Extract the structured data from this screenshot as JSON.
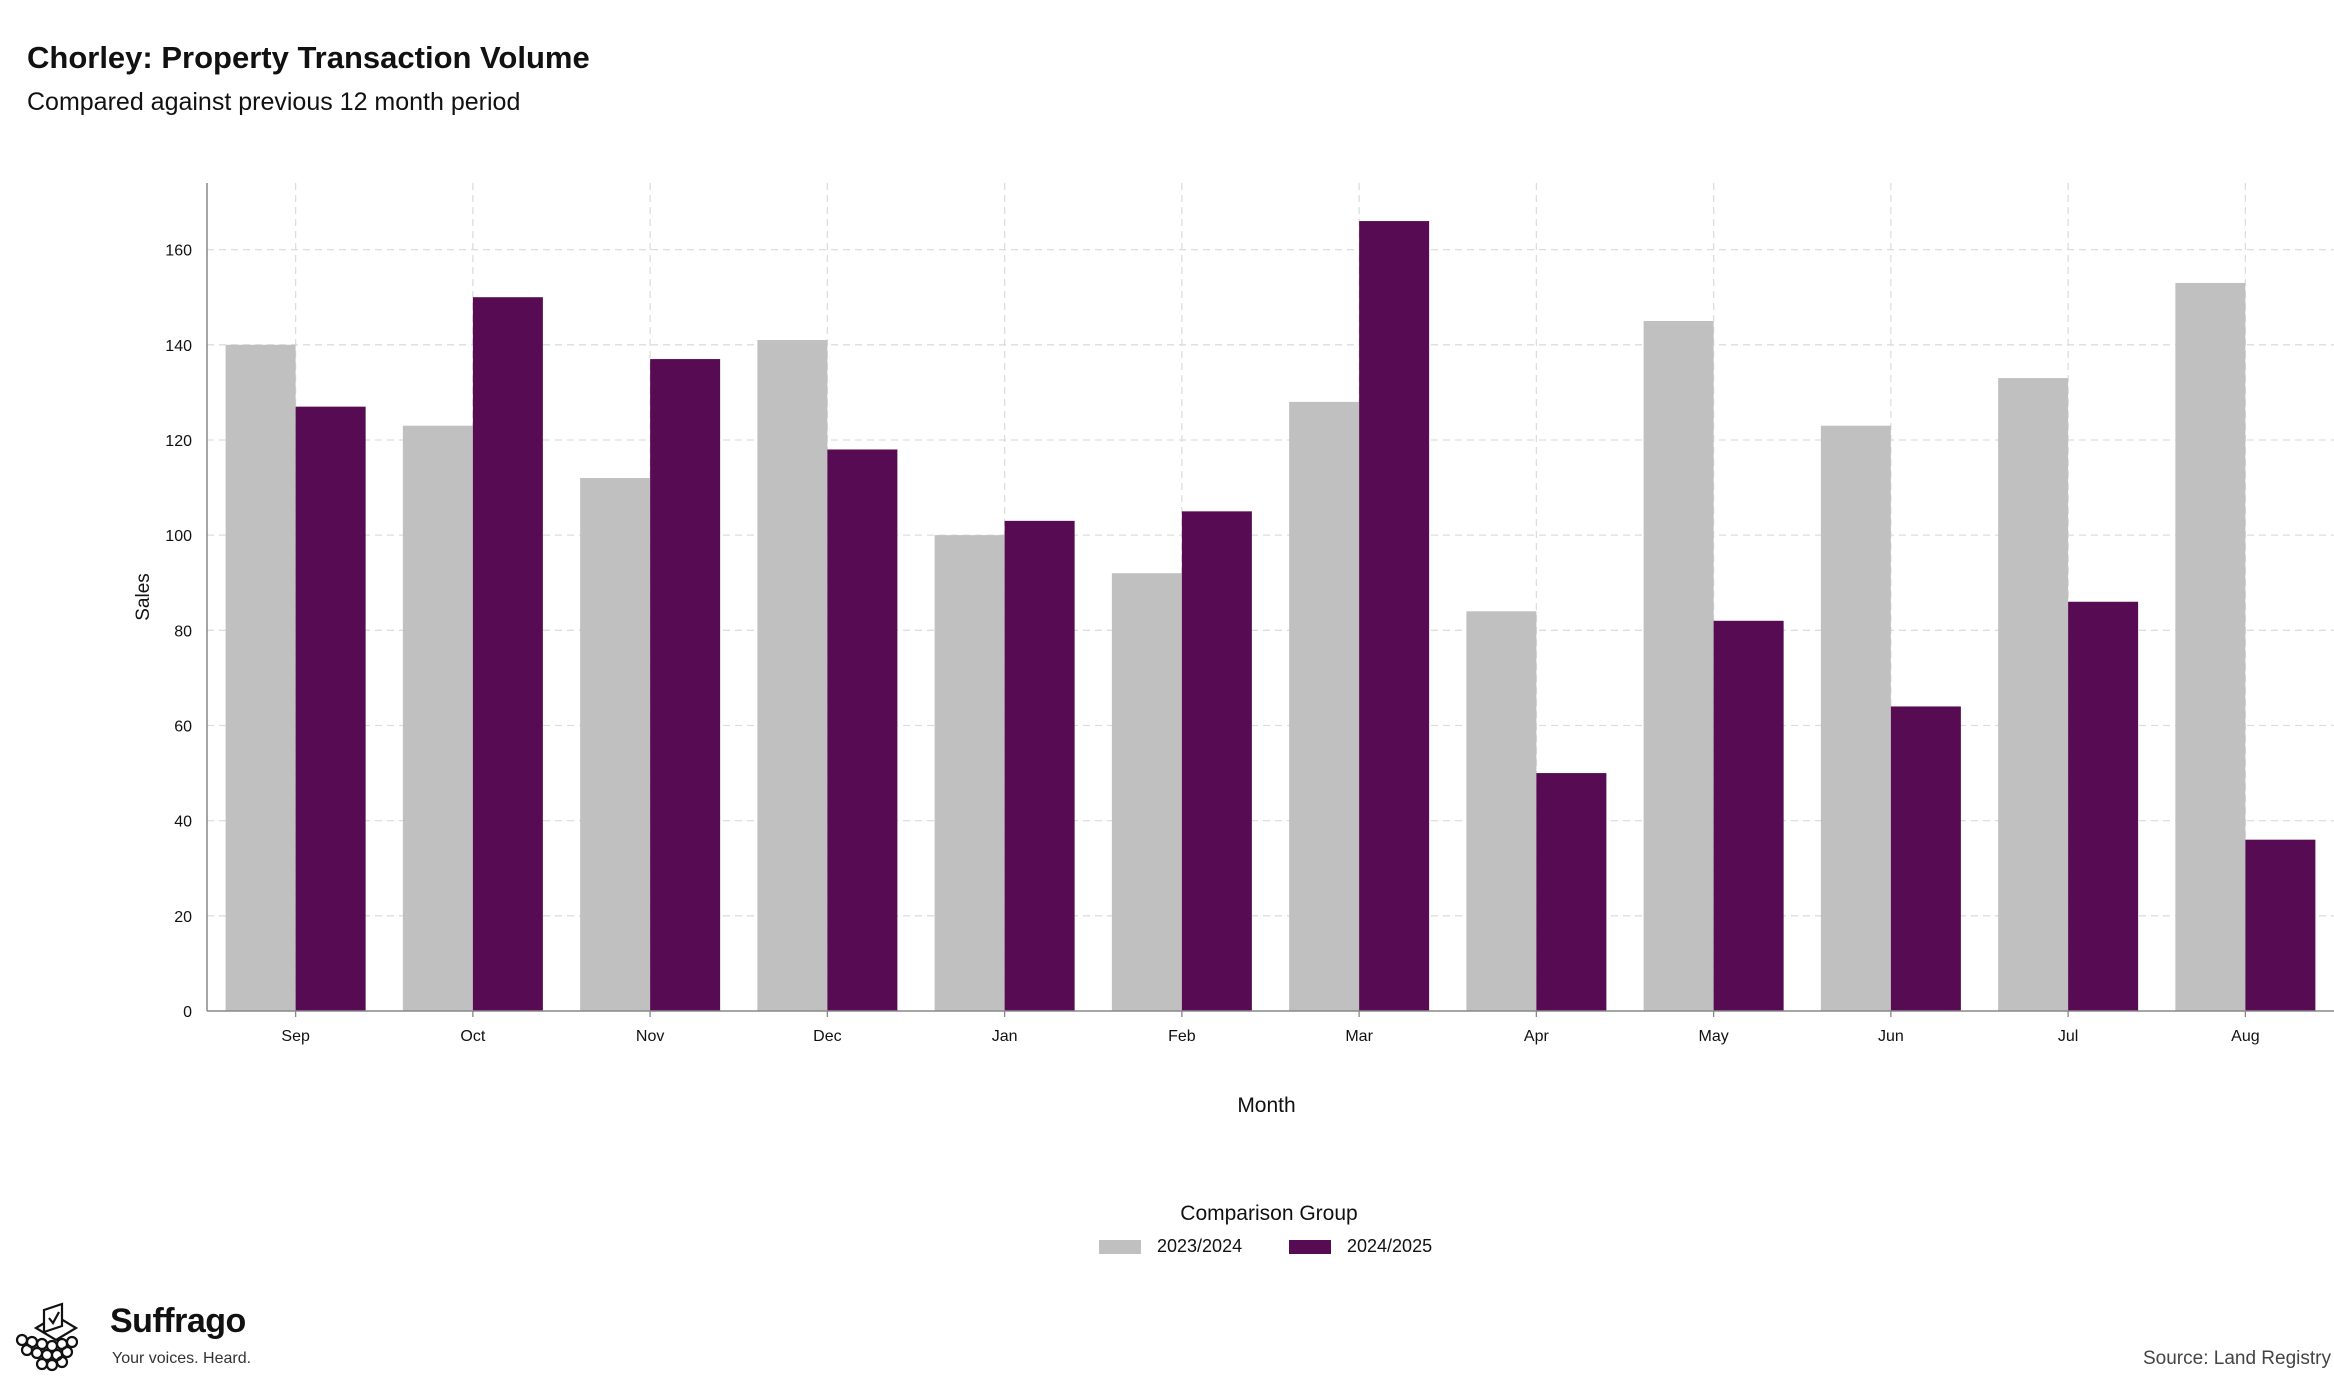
{
  "header": {
    "title": "Chorley: Property Transaction Volume",
    "subtitle": "Compared against previous 12 month period"
  },
  "legend": {
    "title": "Comparison Group",
    "items": [
      {
        "label": "2023/2024",
        "color": "#c0c0c0"
      },
      {
        "label": "2024/2025",
        "color": "#560b52"
      }
    ]
  },
  "branding": {
    "name": "Suffrago",
    "tagline": "Your voices. Heard.",
    "icon": "ballot-box-icon"
  },
  "footer": {
    "source": "Source: Land Registry"
  },
  "chart_data": {
    "type": "bar",
    "title": "Chorley: Property Transaction Volume",
    "subtitle": "Compared against previous 12 month period",
    "xlabel": "Month",
    "ylabel": "Sales",
    "ylim": [
      0,
      174
    ],
    "yticks": [
      0,
      20,
      40,
      60,
      80,
      100,
      120,
      140,
      160
    ],
    "grid": true,
    "legend_position": "bottom",
    "categories": [
      "Sep",
      "Oct",
      "Nov",
      "Dec",
      "Jan",
      "Feb",
      "Mar",
      "Apr",
      "May",
      "Jun",
      "Jul",
      "Aug"
    ],
    "series": [
      {
        "name": "2023/2024",
        "color": "#c0c0c0",
        "values": [
          140,
          123,
          112,
          141,
          100,
          92,
          128,
          84,
          145,
          123,
          133,
          153
        ]
      },
      {
        "name": "2024/2025",
        "color": "#560b52",
        "values": [
          127,
          150,
          137,
          118,
          103,
          105,
          166,
          50,
          82,
          64,
          86,
          36
        ]
      }
    ]
  }
}
